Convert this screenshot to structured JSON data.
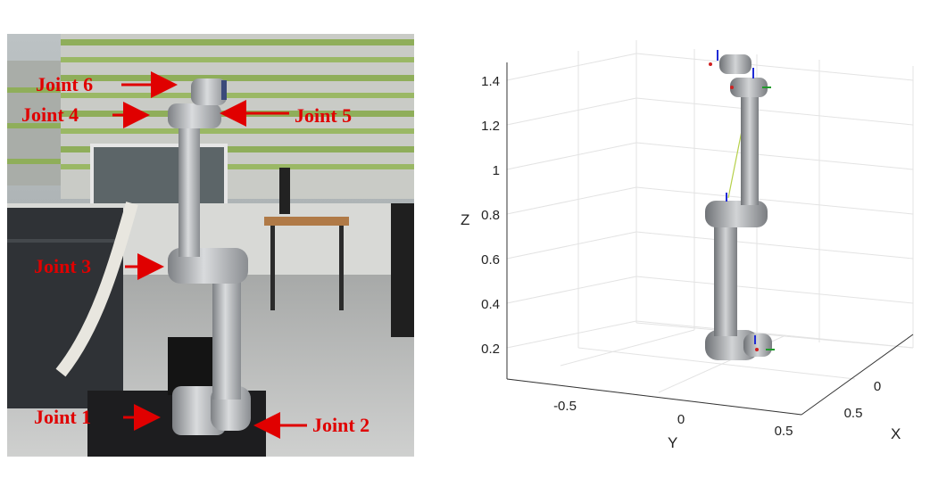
{
  "photo": {
    "joint_labels": [
      "Joint 6",
      "Joint 4",
      "Joint 5",
      "Joint 3",
      "Joint 1",
      "Joint 2"
    ],
    "label_color": "#e00000"
  },
  "plot": {
    "z_axis": {
      "label": "Z",
      "ticks": [
        "1.4",
        "1.2",
        "1",
        "0.8",
        "0.6",
        "0.4",
        "0.2"
      ]
    },
    "y_axis": {
      "label": "Y",
      "ticks": [
        "-0.5",
        "0",
        "0.5"
      ]
    },
    "x_axis": {
      "label": "X",
      "ticks": [
        "0",
        "0.5"
      ]
    }
  }
}
